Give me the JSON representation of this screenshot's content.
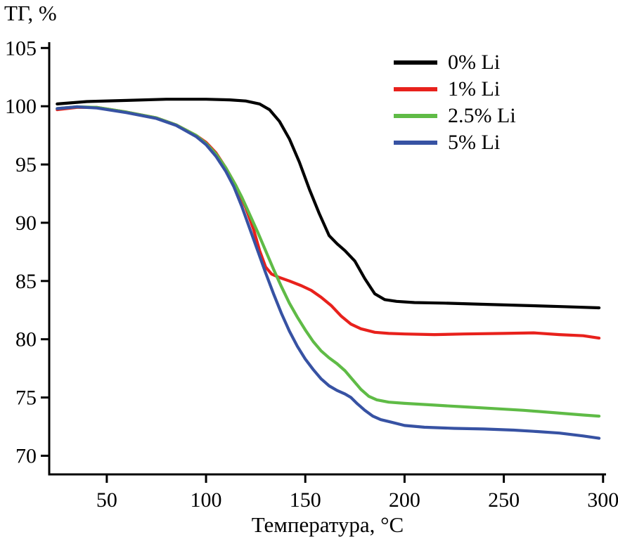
{
  "chart_data": {
    "type": "line",
    "title": "",
    "xlabel": "Температура, °C",
    "ylabel": "ТГ, %",
    "xlim": [
      21,
      301.5
    ],
    "ylim": [
      68.4,
      105.5
    ],
    "x_ticks": [
      50,
      100,
      150,
      200,
      250,
      300
    ],
    "y_ticks": [
      70,
      75,
      80,
      85,
      90,
      95,
      100,
      105
    ],
    "grid": false,
    "legend_position": "top-right",
    "axis_color": "#000000",
    "series": [
      {
        "name": "0% Li",
        "color": "#000000",
        "x": [
          25,
          40,
          60,
          80,
          100,
          112,
          120,
          127,
          132,
          137,
          142,
          147,
          152,
          157,
          162,
          166,
          170,
          175,
          180,
          185,
          190,
          196,
          205,
          220,
          240,
          260,
          280,
          298
        ],
        "y": [
          100.2,
          100.4,
          100.5,
          100.6,
          100.6,
          100.55,
          100.45,
          100.2,
          99.7,
          98.7,
          97.2,
          95.2,
          92.9,
          90.8,
          88.9,
          88.2,
          87.6,
          86.7,
          85.2,
          83.9,
          83.4,
          83.25,
          83.15,
          83.1,
          83.0,
          82.9,
          82.8,
          82.7
        ]
      },
      {
        "name": "1% Li",
        "color": "#e8211c",
        "x": [
          25,
          35,
          45,
          60,
          75,
          85,
          95,
          100,
          105,
          110,
          115,
          120,
          124,
          127,
          130,
          133,
          137,
          142,
          148,
          153,
          158,
          163,
          168,
          173,
          178,
          185,
          192,
          200,
          215,
          230,
          250,
          265,
          278,
          290,
          298
        ],
        "y": [
          99.7,
          99.9,
          99.9,
          99.5,
          99.0,
          98.4,
          97.5,
          96.9,
          96.0,
          94.7,
          93.2,
          91.3,
          89.4,
          87.6,
          86.2,
          85.6,
          85.3,
          85.0,
          84.6,
          84.2,
          83.6,
          82.9,
          82.0,
          81.3,
          80.9,
          80.6,
          80.5,
          80.45,
          80.4,
          80.45,
          80.5,
          80.55,
          80.4,
          80.3,
          80.1
        ]
      },
      {
        "name": "2.5% Li",
        "color": "#5fbb46",
        "x": [
          25,
          35,
          45,
          60,
          75,
          85,
          95,
          100,
          105,
          110,
          115,
          118,
          122,
          126,
          130,
          134,
          138,
          142,
          146,
          150,
          154,
          158,
          162,
          166,
          170,
          174,
          178,
          182,
          186,
          192,
          200,
          215,
          230,
          245,
          260,
          275,
          290,
          298
        ],
        "y": [
          99.8,
          99.95,
          99.9,
          99.5,
          99.0,
          98.4,
          97.5,
          96.8,
          95.9,
          94.7,
          93.2,
          92.2,
          90.7,
          89.2,
          87.6,
          86.0,
          84.5,
          83.1,
          81.9,
          80.8,
          79.8,
          79.0,
          78.4,
          77.9,
          77.3,
          76.5,
          75.7,
          75.1,
          74.8,
          74.6,
          74.5,
          74.35,
          74.2,
          74.05,
          73.9,
          73.7,
          73.5,
          73.4
        ]
      },
      {
        "name": "5% Li",
        "color": "#3752a3",
        "x": [
          25,
          35,
          45,
          60,
          75,
          85,
          95,
          100,
          105,
          110,
          114,
          118,
          122,
          126,
          130,
          134,
          138,
          142,
          146,
          150,
          154,
          158,
          162,
          166,
          170,
          173,
          176,
          180,
          184,
          188,
          193,
          200,
          210,
          225,
          240,
          255,
          265,
          278,
          290,
          298
        ],
        "y": [
          99.8,
          99.95,
          99.85,
          99.45,
          98.95,
          98.35,
          97.4,
          96.7,
          95.7,
          94.4,
          93.1,
          91.4,
          89.5,
          87.6,
          85.7,
          83.9,
          82.2,
          80.7,
          79.4,
          78.3,
          77.4,
          76.6,
          76.0,
          75.6,
          75.3,
          75.0,
          74.5,
          73.9,
          73.4,
          73.1,
          72.9,
          72.6,
          72.45,
          72.35,
          72.3,
          72.2,
          72.1,
          71.95,
          71.7,
          71.5
        ]
      }
    ]
  }
}
